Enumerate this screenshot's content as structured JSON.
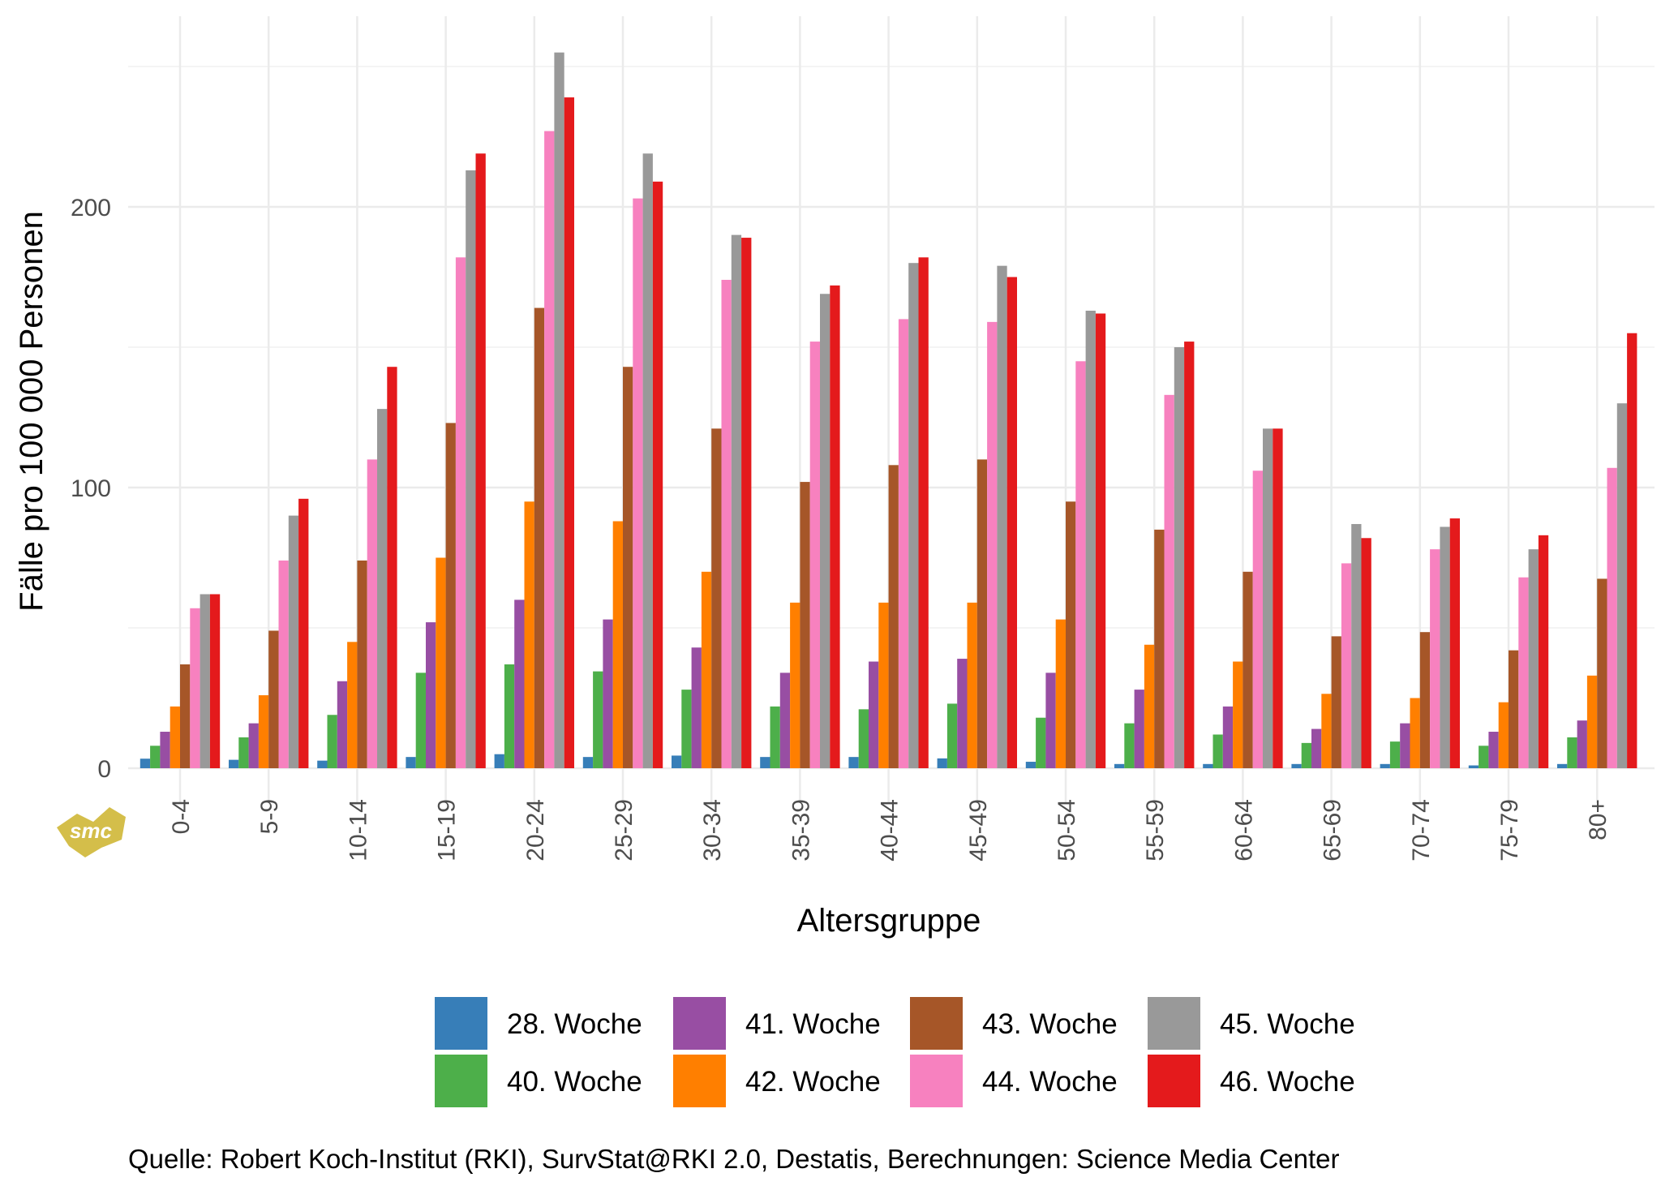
{
  "chart_data": {
    "type": "bar",
    "title": "",
    "xlabel": "Altersgruppe",
    "ylabel": "Fälle pro 100 000 Personen",
    "ylim": [
      0,
      255
    ],
    "yticks": [
      0,
      100,
      200
    ],
    "grid": true,
    "legend_placement": "bottom",
    "categories": [
      "0-4",
      "5-9",
      "10-14",
      "15-19",
      "20-24",
      "25-29",
      "30-34",
      "35-39",
      "40-44",
      "45-49",
      "50-54",
      "55-59",
      "60-64",
      "65-69",
      "70-74",
      "75-79",
      "80+"
    ],
    "series": [
      {
        "name": "28. Woche",
        "color": "#377EB8",
        "values": [
          3.4,
          3,
          2.7,
          4,
          5,
          4,
          4.5,
          4,
          4,
          3.5,
          2.3,
          1.5,
          1.5,
          1.5,
          1.5,
          1,
          1.5
        ]
      },
      {
        "name": "40. Woche",
        "color": "#4DAF4A",
        "values": [
          8,
          11,
          19,
          34,
          37,
          34.5,
          28,
          22,
          21,
          23,
          18,
          16,
          12,
          9,
          9.5,
          8,
          11
        ]
      },
      {
        "name": "41. Woche",
        "color": "#984EA3",
        "values": [
          13,
          16,
          31,
          52,
          60,
          53,
          43,
          34,
          38,
          39,
          34,
          28,
          22,
          14,
          16,
          13,
          17
        ]
      },
      {
        "name": "42. Woche",
        "color": "#FF7F00",
        "values": [
          22,
          26,
          45,
          75,
          95,
          88,
          70,
          59,
          59,
          59,
          53,
          44,
          38,
          26.5,
          25,
          23.5,
          33
        ]
      },
      {
        "name": "43. Woche",
        "color": "#A65628",
        "values": [
          37,
          49,
          74,
          123,
          164,
          143,
          121,
          102,
          108,
          110,
          95,
          85,
          70,
          47,
          48.5,
          42,
          67.5
        ]
      },
      {
        "name": "44. Woche",
        "color": "#F781BF",
        "values": [
          57,
          74,
          110,
          182,
          227,
          203,
          174,
          152,
          160,
          159,
          145,
          133,
          106,
          73,
          78,
          68,
          107
        ]
      },
      {
        "name": "45. Woche",
        "color": "#999999",
        "values": [
          62,
          90,
          128,
          213,
          255,
          219,
          190,
          169,
          180,
          179,
          163,
          150,
          121,
          87,
          86,
          78,
          130
        ]
      },
      {
        "name": "46. Woche",
        "color": "#E41A1C",
        "values": [
          62,
          96,
          143,
          219,
          239,
          209,
          189,
          172,
          182,
          175,
          162,
          152,
          121,
          82,
          89,
          83,
          155
        ]
      }
    ],
    "caption": "Quelle: Robert Koch-Institut (RKI), SurvStat@RKI 2.0, Destatis, Berechnungen: Science Media Center",
    "logo_text": "smc"
  }
}
